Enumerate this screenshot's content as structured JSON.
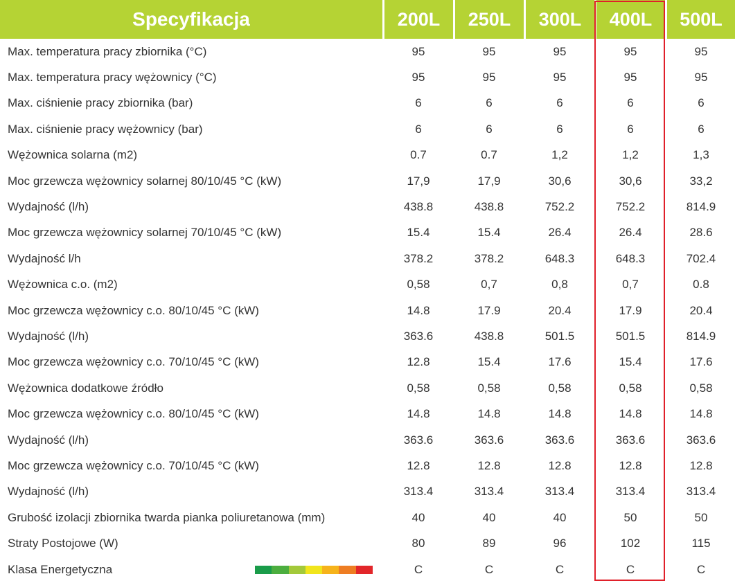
{
  "header": {
    "title": "Specyfikacja",
    "sizes": [
      "200L",
      "250L",
      "300L",
      "400L",
      "500L"
    ]
  },
  "highlighted_column": "400L",
  "rows": [
    {
      "label": "Max. temperatura pracy zbiornika (°C)",
      "values": [
        "95",
        "95",
        "95",
        "95",
        "95"
      ]
    },
    {
      "label": "Max. temperatura pracy wężownicy (°C)",
      "values": [
        "95",
        "95",
        "95",
        "95",
        "95"
      ]
    },
    {
      "label": "Max. ciśnienie pracy zbiornika (bar)",
      "values": [
        "6",
        "6",
        "6",
        "6",
        "6"
      ]
    },
    {
      "label": "Max. ciśnienie pracy wężownicy (bar)",
      "values": [
        "6",
        "6",
        "6",
        "6",
        "6"
      ]
    },
    {
      "label": "Wężownica solarna (m2)",
      "values": [
        "0.7",
        "0.7",
        "1,2",
        "1,2",
        "1,3"
      ]
    },
    {
      "label": "Moc grzewcza wężownicy solarnej 80/10/45 °C (kW)",
      "values": [
        "17,9",
        "17,9",
        "30,6",
        "30,6",
        "33,2"
      ]
    },
    {
      "label": "Wydajność (l/h)",
      "values": [
        "438.8",
        "438.8",
        "752.2",
        "752.2",
        "814.9"
      ]
    },
    {
      "label": "Moc grzewcza wężownicy solarnej 70/10/45 °C (kW)",
      "values": [
        "15.4",
        "15.4",
        "26.4",
        "26.4",
        "28.6"
      ]
    },
    {
      "label": "Wydajność l/h",
      "values": [
        "378.2",
        "378.2",
        "648.3",
        "648.3",
        "702.4"
      ]
    },
    {
      "label": "Wężownica c.o. (m2)",
      "values": [
        "0,58",
        "0,7",
        "0,8",
        "0,7",
        "0.8"
      ]
    },
    {
      "label": "Moc grzewcza wężownicy c.o. 80/10/45 °C (kW)",
      "values": [
        "14.8",
        "17.9",
        "20.4",
        "17.9",
        "20.4"
      ]
    },
    {
      "label": "Wydajność (l/h)",
      "values": [
        "363.6",
        "438.8",
        "501.5",
        "501.5",
        "814.9"
      ]
    },
    {
      "label": "Moc grzewcza wężownicy c.o. 70/10/45 °C (kW)",
      "values": [
        "12.8",
        "15.4",
        "17.6",
        "15.4",
        "17.6"
      ]
    },
    {
      "label": "Wężownica dodatkowe źródło",
      "values": [
        "0,58",
        "0,58",
        "0,58",
        "0,58",
        "0,58"
      ]
    },
    {
      "label": "Moc grzewcza wężownicy c.o. 80/10/45 °C (kW)",
      "values": [
        "14.8",
        "14.8",
        "14.8",
        "14.8",
        "14.8"
      ]
    },
    {
      "label": "Wydajność (l/h)",
      "values": [
        "363.6",
        "363.6",
        "363.6",
        "363.6",
        "363.6"
      ]
    },
    {
      "label": "Moc grzewcza wężownicy c.o. 70/10/45 °C (kW)",
      "values": [
        "12.8",
        "12.8",
        "12.8",
        "12.8",
        "12.8"
      ]
    },
    {
      "label": "Wydajność (l/h)",
      "values": [
        "313.4",
        "313.4",
        "313.4",
        "313.4",
        "313.4"
      ]
    },
    {
      "label": "Grubość izolacji zbiornika twarda pianka poliuretanowa (mm)",
      "values": [
        "40",
        "40",
        "40",
        "50",
        "50"
      ]
    },
    {
      "label": "Straty Postojowe (W)",
      "values": [
        "80",
        "89",
        "96",
        "102",
        "115"
      ]
    },
    {
      "label": "Klasa Energetyczna",
      "values": [
        "C",
        "C",
        "C",
        "C",
        "C"
      ],
      "energy_scale": true
    }
  ],
  "energy_scale_colors": [
    "#1a9c4a",
    "#4cae3f",
    "#a3c93a",
    "#f1e51c",
    "#f6b31b",
    "#ee7d23",
    "#e2262a"
  ],
  "colors": {
    "header_bg": "#b5d334",
    "header_text": "#ffffff",
    "highlight_border": "#e0202a"
  }
}
